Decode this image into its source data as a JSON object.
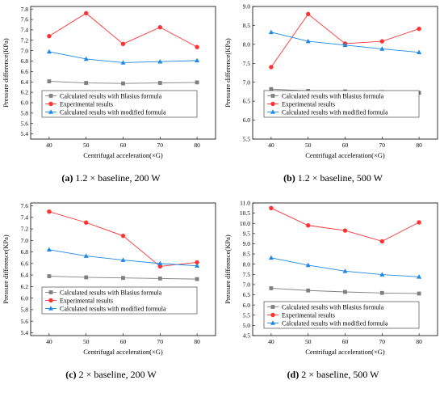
{
  "legend_labels": [
    "Calculated results with Blasius formula",
    "Experimental results",
    "Calculated results with modified formula"
  ],
  "series_colors": [
    "#808080",
    "#ff3333",
    "#1e88e5"
  ],
  "series_markers": [
    "square",
    "circle",
    "triangle"
  ],
  "chart_data": [
    {
      "type": "line",
      "caption_letter": "(a)",
      "caption_text": "1.2 × baseline, 200 W",
      "xlabel": "Centrifugal acceleration(×G)",
      "ylabel": "Pressure difference(KPa)",
      "x": [
        40,
        50,
        60,
        70,
        80
      ],
      "xlim": [
        35,
        85
      ],
      "xticks": [
        "40",
        "50",
        "60",
        "70",
        "80"
      ],
      "ylim": [
        5.3,
        7.85
      ],
      "yticks": [
        "5.4",
        "5.6",
        "5.8",
        "6.0",
        "6.2",
        "6.4",
        "6.6",
        "6.8",
        "7.0",
        "7.2",
        "7.4",
        "7.6",
        "7.8"
      ],
      "legend_position": "middle",
      "series": [
        {
          "name": "Calculated results with Blasius formula",
          "values": [
            6.41,
            6.38,
            6.37,
            6.38,
            6.39
          ]
        },
        {
          "name": "Experimental results",
          "values": [
            7.28,
            7.72,
            7.13,
            7.45,
            7.07
          ]
        },
        {
          "name": "Calculated results with modified formula",
          "values": [
            6.98,
            6.84,
            6.77,
            6.79,
            6.81
          ]
        }
      ]
    },
    {
      "type": "line",
      "caption_letter": "(b)",
      "caption_text": "1.2 × baseline, 500 W",
      "xlabel": "Centrifugal acceleration(×G)",
      "ylabel": "Pressure difference(KPa)",
      "x": [
        40,
        50,
        60,
        70,
        80
      ],
      "xlim": [
        35,
        85
      ],
      "xticks": [
        "40",
        "50",
        "60",
        "70",
        "80"
      ],
      "ylim": [
        5.5,
        9.0
      ],
      "yticks": [
        "5.5",
        "6.0",
        "6.5",
        "7.0",
        "7.5",
        "8.0",
        "8.5",
        "9.0"
      ],
      "legend_position": "middle",
      "series": [
        {
          "name": "Calculated results with Blasius formula",
          "values": [
            6.82,
            6.77,
            6.76,
            6.74,
            6.72
          ]
        },
        {
          "name": "Experimental results",
          "values": [
            7.4,
            8.8,
            8.02,
            8.08,
            8.41
          ]
        },
        {
          "name": "Calculated results with modified formula",
          "values": [
            8.32,
            8.08,
            7.98,
            7.88,
            7.79
          ]
        }
      ]
    },
    {
      "type": "line",
      "caption_letter": "(c)",
      "caption_text": "2 × baseline, 200 W",
      "xlabel": "Centrifugal acceleration(×G)",
      "ylabel": "Pressure difference(KPa)",
      "x": [
        40,
        50,
        60,
        70,
        80
      ],
      "xlim": [
        35,
        85
      ],
      "xticks": [
        "40",
        "50",
        "60",
        "70",
        "80"
      ],
      "ylim": [
        5.35,
        7.65
      ],
      "yticks": [
        "5.4",
        "5.6",
        "5.8",
        "6.0",
        "6.2",
        "6.4",
        "6.6",
        "6.8",
        "7.0",
        "7.2",
        "7.4",
        "7.6"
      ],
      "legend_position": "middle",
      "series": [
        {
          "name": "Calculated results with Blasius formula",
          "values": [
            6.38,
            6.36,
            6.35,
            6.34,
            6.33
          ]
        },
        {
          "name": "Experimental results",
          "values": [
            7.5,
            7.31,
            7.08,
            6.55,
            6.62
          ]
        },
        {
          "name": "Calculated results with modified formula",
          "values": [
            6.84,
            6.73,
            6.66,
            6.6,
            6.56
          ]
        }
      ]
    },
    {
      "type": "line",
      "caption_letter": "(d)",
      "caption_text": "2 × baseline, 500 W",
      "xlabel": "Centrifugal acceleration(×G)",
      "ylabel": "Pressure difference(KPa)",
      "x": [
        40,
        50,
        60,
        70,
        80
      ],
      "xlim": [
        35,
        85
      ],
      "xticks": [
        "40",
        "50",
        "60",
        "70",
        "80"
      ],
      "ylim": [
        4.5,
        11.0
      ],
      "yticks": [
        "4.5",
        "5.0",
        "5.5",
        "6.0",
        "6.5",
        "7.0",
        "7.5",
        "8.0",
        "8.5",
        "9.0",
        "9.5",
        "10.0",
        "10.5",
        "11.0"
      ],
      "legend_position": "lower",
      "series": [
        {
          "name": "Calculated results with Blasius formula",
          "values": [
            6.82,
            6.71,
            6.64,
            6.59,
            6.56
          ]
        },
        {
          "name": "Experimental results",
          "values": [
            10.75,
            9.9,
            9.65,
            9.12,
            10.05
          ]
        },
        {
          "name": "Calculated results with modified formula",
          "values": [
            8.31,
            7.95,
            7.66,
            7.49,
            7.38
          ]
        }
      ]
    }
  ]
}
